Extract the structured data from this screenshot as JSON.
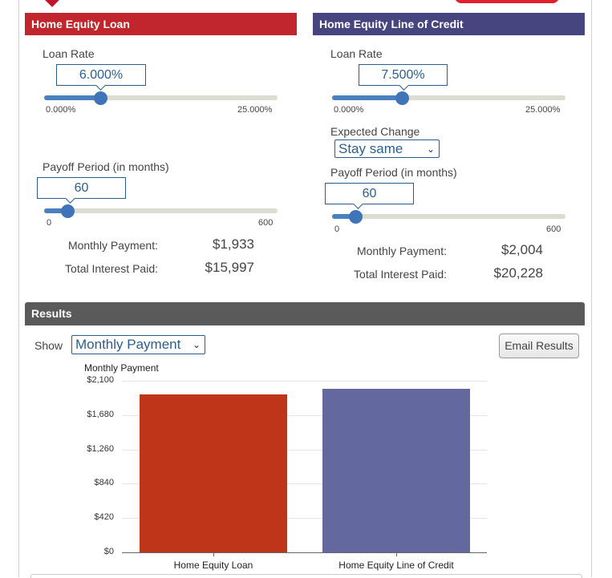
{
  "heloan": {
    "header": "Home Equity Loan",
    "rate_label": "Loan Rate",
    "rate_value": "6.000%",
    "rate_fraction": 0.24,
    "rate_min": "0.000%",
    "rate_max": "25.000%",
    "period_label": "Payoff Period (in months)",
    "period_value": "60",
    "period_fraction": 0.1,
    "period_min": "0",
    "period_max": "600",
    "monthly_label": "Monthly Payment:",
    "monthly_value": "$1,933",
    "interest_label": "Total Interest Paid:",
    "interest_value": "$15,997"
  },
  "heloc": {
    "header": "Home Equity Line of Credit",
    "rate_label": "Loan Rate",
    "rate_value": "7.500%",
    "rate_fraction": 0.3,
    "rate_min": "0.000%",
    "rate_max": "25.000%",
    "change_label": "Expected Change",
    "change_value": "Stay same",
    "period_label": "Payoff Period (in months)",
    "period_value": "60",
    "period_fraction": 0.1,
    "period_min": "0",
    "period_max": "600",
    "monthly_label": "Monthly Payment:",
    "monthly_value": "$2,004",
    "interest_label": "Total Interest Paid:",
    "interest_value": "$20,228"
  },
  "results": {
    "header": "Results",
    "show_label": "Show",
    "show_value": "Monthly Payment",
    "email_label": "Email Results"
  },
  "colors": {
    "heloan": "#c0262b",
    "heloc": "#474580",
    "results": "#5a5a5a",
    "bar_loan": "#be3519",
    "bar_heloc": "#63689f",
    "slider": "#4a7fc0"
  },
  "chart_data": {
    "type": "bar",
    "title": "Monthly Payment",
    "categories": [
      "Home Equity Loan",
      "Home Equity Line of Credit"
    ],
    "values": [
      1933,
      2004
    ],
    "ylim": [
      0,
      2100
    ],
    "yticks": [
      "$2,100",
      "$1,680",
      "$1,260",
      "$840",
      "$420",
      "$0"
    ],
    "ytick_values": [
      2100,
      1680,
      1260,
      840,
      420,
      0
    ]
  }
}
